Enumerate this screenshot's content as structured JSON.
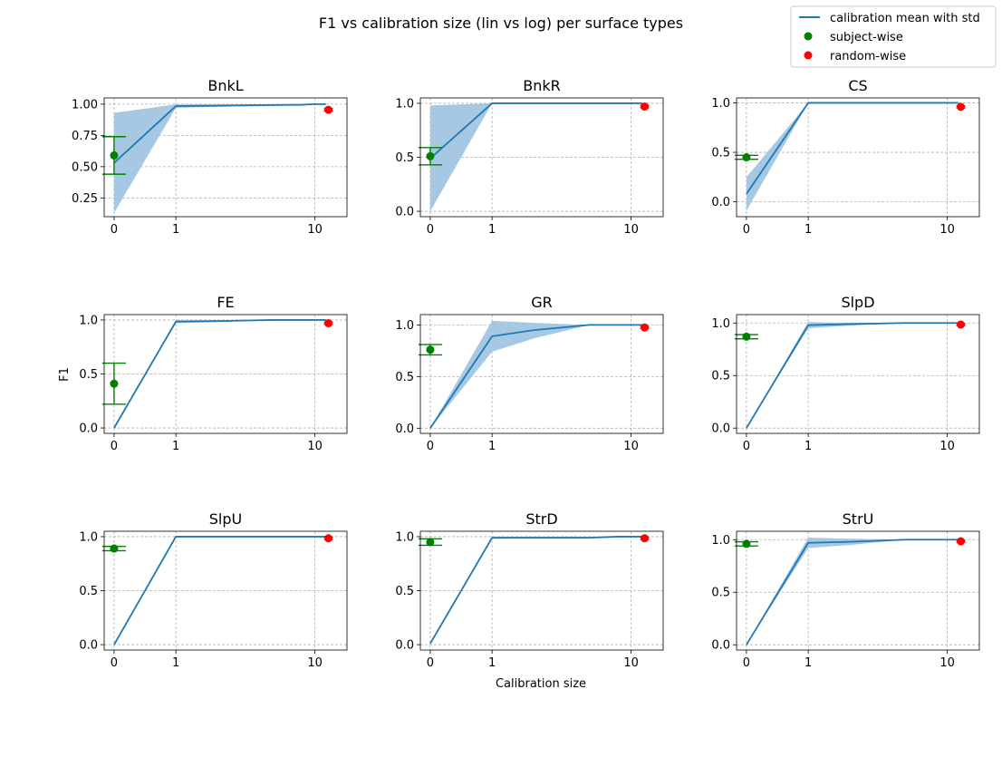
{
  "chart_data": {
    "type": "line",
    "title": "F1 vs calibration size (lin vs log) per surface types",
    "xlabel": "Calibration size",
    "ylabel": "F1",
    "x_scale": "symlog",
    "x_ticks": [
      "0",
      "1",
      "10"
    ],
    "grid": true,
    "legend": {
      "placement": "top-right",
      "entries": [
        "calibration mean with std",
        "subject-wise",
        "random-wise"
      ]
    },
    "colors": {
      "calibration": "#1f77b4",
      "band": "#a6c8e2",
      "subject": "#008000",
      "random": "#ff0000"
    },
    "panels": [
      {
        "title": "BnkL",
        "ylim": [
          0.1,
          1.05
        ],
        "yticks": [
          "0.25",
          "0.50",
          "0.75",
          "1.00"
        ],
        "ytick_values": [
          0.25,
          0.5,
          0.75,
          1.0
        ],
        "x": [
          0,
          1,
          2,
          5,
          8,
          10,
          12
        ],
        "mean": [
          0.53,
          0.985,
          0.988,
          0.993,
          0.995,
          1.0,
          1.0
        ],
        "upper": [
          0.93,
          0.998,
          0.998,
          1.0,
          1.0,
          1.0,
          1.0
        ],
        "lower": [
          0.13,
          0.97,
          0.978,
          0.986,
          0.99,
          1.0,
          1.0
        ],
        "subject": {
          "x": 0,
          "y": 0.59,
          "err": 0.15
        },
        "random": {
          "x": 12.5,
          "y": 0.955,
          "err": 0.01
        }
      },
      {
        "title": "BnkR",
        "ylim": [
          -0.05,
          1.05
        ],
        "yticks": [
          "0.0",
          "0.5",
          "1.0"
        ],
        "ytick_values": [
          0.0,
          0.5,
          1.0
        ],
        "x": [
          0,
          1,
          2,
          5,
          8,
          10,
          12
        ],
        "mean": [
          0.49,
          1.0,
          1.0,
          1.0,
          1.0,
          1.0,
          1.0
        ],
        "upper": [
          0.98,
          1.0,
          1.0,
          1.0,
          1.0,
          1.0,
          1.0
        ],
        "lower": [
          0.0,
          1.0,
          1.0,
          1.0,
          1.0,
          1.0,
          1.0
        ],
        "subject": {
          "x": 0,
          "y": 0.51,
          "err": 0.08
        },
        "random": {
          "x": 12.5,
          "y": 0.97,
          "err": 0.01
        }
      },
      {
        "title": "CS",
        "ylim": [
          -0.15,
          1.05
        ],
        "yticks": [
          "0.0",
          "0.5",
          "1.0"
        ],
        "ytick_values": [
          0.0,
          0.5,
          1.0
        ],
        "x": [
          0,
          1,
          2,
          5,
          8,
          10,
          12
        ],
        "mean": [
          0.08,
          1.0,
          1.0,
          1.0,
          1.0,
          1.0,
          1.0
        ],
        "upper": [
          0.25,
          1.0,
          1.0,
          1.0,
          1.0,
          1.0,
          1.0
        ],
        "lower": [
          -0.09,
          1.0,
          1.0,
          1.0,
          1.0,
          1.0,
          1.0
        ],
        "subject": {
          "x": 0,
          "y": 0.45,
          "err": 0.02
        },
        "random": {
          "x": 12.5,
          "y": 0.96,
          "err": 0.01
        }
      },
      {
        "title": "FE",
        "ylim": [
          -0.05,
          1.05
        ],
        "yticks": [
          "0.0",
          "0.5",
          "1.0"
        ],
        "ytick_values": [
          0.0,
          0.5,
          1.0
        ],
        "x": [
          0,
          1,
          2,
          5,
          8,
          10,
          12
        ],
        "mean": [
          0.0,
          0.985,
          0.99,
          1.0,
          1.0,
          1.0,
          1.0
        ],
        "upper": [
          0.0,
          1.0,
          1.0,
          1.0,
          1.0,
          1.0,
          1.0
        ],
        "lower": [
          0.0,
          0.97,
          0.98,
          1.0,
          1.0,
          1.0,
          1.0
        ],
        "subject": {
          "x": 0,
          "y": 0.41,
          "err": 0.19
        },
        "random": {
          "x": 12.5,
          "y": 0.97,
          "err": 0.01
        }
      },
      {
        "title": "GR",
        "ylim": [
          -0.05,
          1.1
        ],
        "yticks": [
          "0.0",
          "0.5",
          "1.0"
        ],
        "ytick_values": [
          0.0,
          0.5,
          1.0
        ],
        "x": [
          0,
          1,
          2,
          5,
          8,
          10,
          12
        ],
        "mean": [
          0.0,
          0.89,
          0.95,
          1.0,
          1.0,
          1.0,
          1.0
        ],
        "upper": [
          0.0,
          1.04,
          1.02,
          1.0,
          1.0,
          1.0,
          1.0
        ],
        "lower": [
          0.0,
          0.74,
          0.87,
          1.0,
          1.0,
          1.0,
          1.0
        ],
        "subject": {
          "x": 0,
          "y": 0.76,
          "err": 0.05
        },
        "random": {
          "x": 12.5,
          "y": 0.975,
          "err": 0.01
        }
      },
      {
        "title": "SlpD",
        "ylim": [
          -0.05,
          1.08
        ],
        "yticks": [
          "0.0",
          "0.5",
          "1.0"
        ],
        "ytick_values": [
          0.0,
          0.5,
          1.0
        ],
        "x": [
          0,
          1,
          2,
          5,
          8,
          10,
          12
        ],
        "mean": [
          0.0,
          0.98,
          0.99,
          1.0,
          1.0,
          1.0,
          1.0
        ],
        "upper": [
          0.0,
          1.01,
          1.0,
          1.0,
          1.0,
          1.0,
          1.0
        ],
        "lower": [
          0.0,
          0.95,
          0.975,
          1.0,
          1.0,
          1.0,
          1.0
        ],
        "subject": {
          "x": 0,
          "y": 0.87,
          "err": 0.02
        },
        "random": {
          "x": 12.5,
          "y": 0.985,
          "err": 0.01
        }
      },
      {
        "title": "SlpU",
        "ylim": [
          -0.05,
          1.05
        ],
        "yticks": [
          "0.0",
          "0.5",
          "1.0"
        ],
        "ytick_values": [
          0.0,
          0.5,
          1.0
        ],
        "x": [
          0,
          1,
          2,
          5,
          8,
          10,
          12
        ],
        "mean": [
          0.0,
          1.0,
          1.0,
          1.0,
          1.0,
          1.0,
          1.0
        ],
        "upper": [
          0.0,
          1.0,
          1.0,
          1.0,
          1.0,
          1.0,
          1.0
        ],
        "lower": [
          0.0,
          1.0,
          1.0,
          1.0,
          1.0,
          1.0,
          1.0
        ],
        "subject": {
          "x": 0,
          "y": 0.89,
          "err": 0.02
        },
        "random": {
          "x": 12.5,
          "y": 0.985,
          "err": 0.01
        }
      },
      {
        "title": "StrD",
        "ylim": [
          -0.05,
          1.05
        ],
        "yticks": [
          "0.0",
          "0.5",
          "1.0"
        ],
        "ytick_values": [
          0.0,
          0.5,
          1.0
        ],
        "x": [
          0,
          1,
          2,
          5,
          8,
          10,
          12
        ],
        "mean": [
          0.01,
          0.99,
          0.99,
          0.99,
          1.0,
          1.0,
          1.0
        ],
        "upper": [
          0.02,
          1.0,
          1.0,
          1.0,
          1.0,
          1.0,
          1.0
        ],
        "lower": [
          0.0,
          0.98,
          0.985,
          0.985,
          1.0,
          1.0,
          1.0
        ],
        "subject": {
          "x": 0,
          "y": 0.95,
          "err": 0.03
        },
        "random": {
          "x": 12.5,
          "y": 0.985,
          "err": 0.01
        }
      },
      {
        "title": "StrU",
        "ylim": [
          -0.05,
          1.08
        ],
        "yticks": [
          "0.0",
          "0.5",
          "1.0"
        ],
        "ytick_values": [
          0.0,
          0.5,
          1.0
        ],
        "x": [
          0,
          1,
          2,
          5,
          8,
          10,
          12
        ],
        "mean": [
          0.0,
          0.97,
          0.98,
          1.0,
          1.0,
          1.0,
          1.0
        ],
        "upper": [
          0.0,
          1.02,
          1.01,
          1.0,
          1.0,
          1.0,
          1.0
        ],
        "lower": [
          0.0,
          0.92,
          0.95,
          1.0,
          1.0,
          1.0,
          1.0
        ],
        "subject": {
          "x": 0,
          "y": 0.96,
          "err": 0.02
        },
        "random": {
          "x": 12.5,
          "y": 0.985,
          "err": 0.01
        }
      }
    ]
  }
}
